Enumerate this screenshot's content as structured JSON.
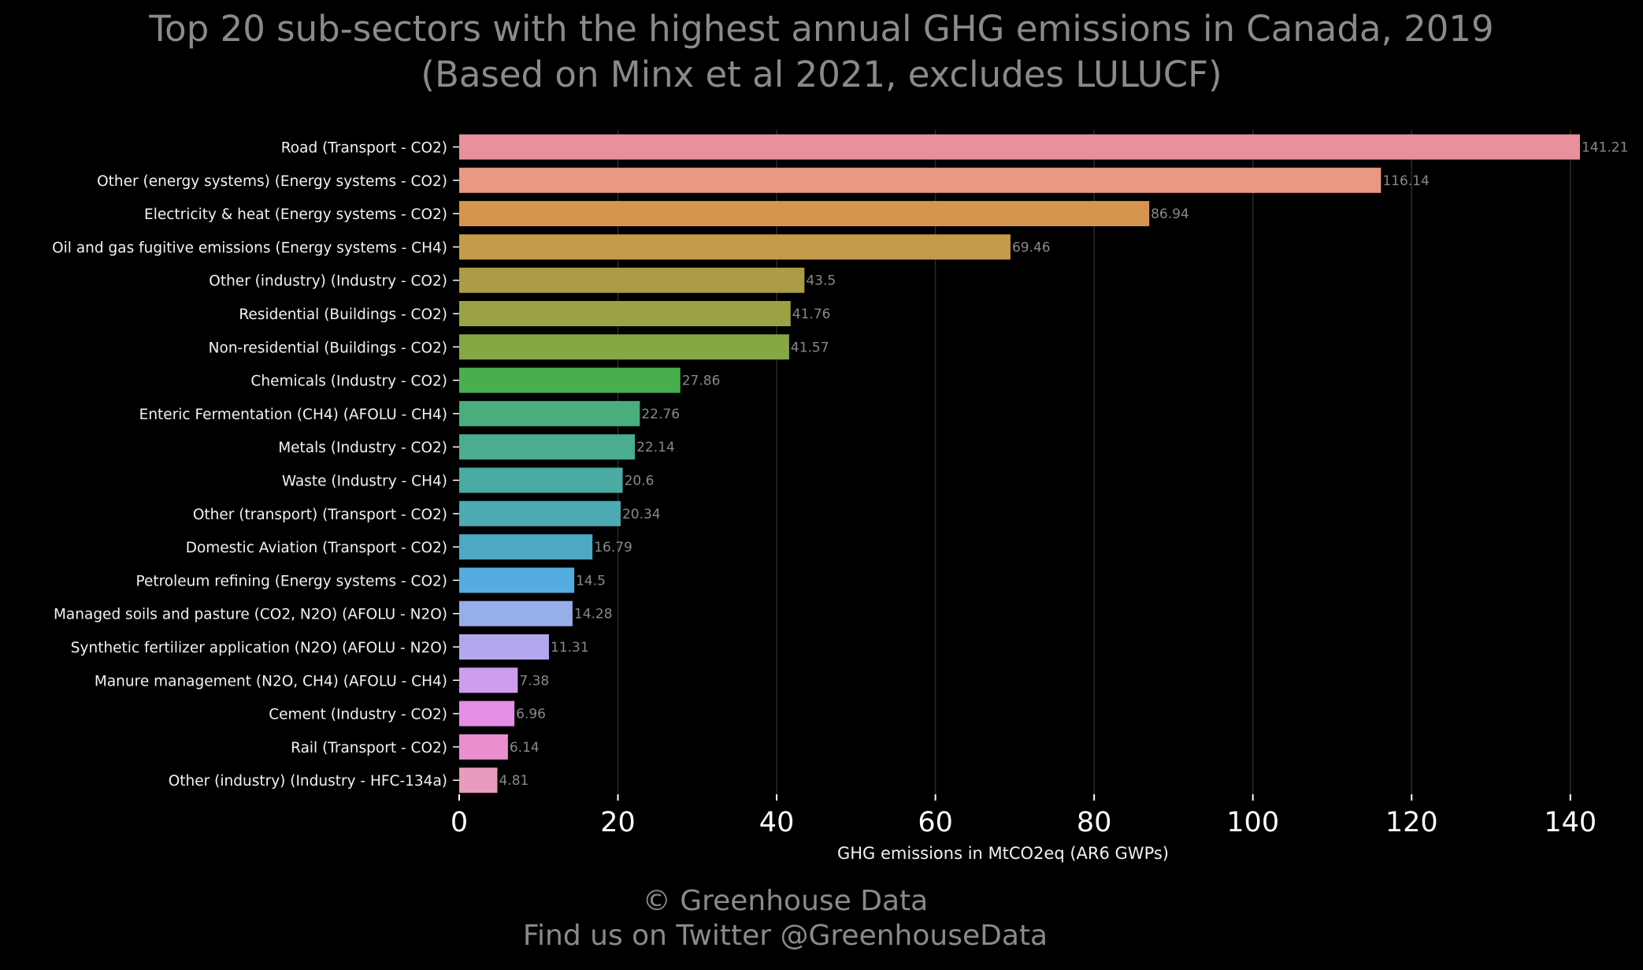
{
  "chart_data": {
    "type": "bar",
    "orientation": "horizontal",
    "title": [
      "Top 20 sub-sectors with the highest annual GHG emissions in Canada, 2019",
      "(Based on Minx et al 2021, excludes LULUCF)"
    ],
    "xlabel": "GHG emissions in MtCO2eq (AR6 GWPs)",
    "ylabel": "",
    "xlim": [
      0,
      143
    ],
    "xticks": [
      0,
      20,
      40,
      60,
      80,
      100,
      120,
      140
    ],
    "grid": "vertical",
    "categories": [
      "Road (Transport - CO2)",
      "Other (energy systems) (Energy systems - CO2)",
      "Electricity & heat (Energy systems - CO2)",
      "Oil and gas fugitive emissions (Energy systems - CH4)",
      "Other (industry) (Industry - CO2)",
      "Residential (Buildings - CO2)",
      "Non-residential (Buildings - CO2)",
      "Chemicals (Industry - CO2)",
      "Enteric Fermentation (CH4) (AFOLU - CH4)",
      "Metals (Industry - CO2)",
      "Waste (Industry - CH4)",
      "Other (transport) (Transport - CO2)",
      "Domestic Aviation (Transport - CO2)",
      "Petroleum refining (Energy systems - CO2)",
      "Managed soils and pasture (CO2, N2O) (AFOLU - N2O)",
      "Synthetic fertilizer application (N2O) (AFOLU - N2O)",
      "Manure management (N2O, CH4) (AFOLU - CH4)",
      "Cement (Industry - CO2)",
      "Rail  (Transport - CO2)",
      "Other (industry) (Industry - HFC-134a)"
    ],
    "values": [
      141.21,
      116.14,
      86.94,
      69.46,
      43.5,
      41.76,
      41.57,
      27.86,
      22.76,
      22.14,
      20.6,
      20.34,
      16.79,
      14.5,
      14.28,
      11.31,
      7.38,
      6.96,
      6.14,
      4.81
    ],
    "value_labels": [
      "141.21",
      "116.14",
      "86.94",
      "69.46",
      "43.5",
      "41.76",
      "41.57",
      "27.86",
      "22.76",
      "22.14",
      "20.6",
      "20.34",
      "16.79",
      "14.5",
      "14.28",
      "11.31",
      "7.38",
      "6.96",
      "6.14",
      "4.81"
    ],
    "colors": [
      "#e8909c",
      "#e89883",
      "#d6954c",
      "#c49a4b",
      "#ac9c46",
      "#9ba244",
      "#86a744",
      "#49ae4e",
      "#4aad7c",
      "#4bac92",
      "#4aaba2",
      "#4caab2",
      "#4da8c4",
      "#55ace0",
      "#97afe8",
      "#b3a8ee",
      "#cc9eeb",
      "#e58ee5",
      "#e98fce",
      "#e89bbd"
    ]
  },
  "footer": {
    "line1": "© Greenhouse Data",
    "line2": "Find us on Twitter @GreenhouseData"
  }
}
